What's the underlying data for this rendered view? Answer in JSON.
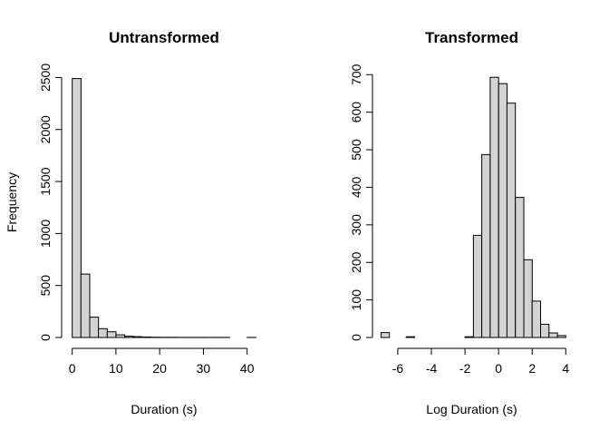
{
  "chart_data": [
    {
      "type": "bar",
      "title": "Untransformed",
      "xlabel": "Duration (s)",
      "ylabel": "Frequency",
      "bin_width": 2,
      "bin_starts": [
        0,
        2,
        4,
        6,
        8,
        10,
        12,
        14,
        16,
        18,
        20,
        22,
        24,
        26,
        28,
        30,
        32,
        34,
        36,
        38,
        40,
        42
      ],
      "values": [
        2490,
        610,
        195,
        85,
        55,
        25,
        12,
        8,
        4,
        3,
        2,
        2,
        1,
        1,
        1,
        1,
        1,
        1,
        0,
        0,
        1,
        0
      ],
      "xlim": [
        -2,
        44
      ],
      "ylim": [
        0,
        2600
      ],
      "xticks": [
        0,
        10,
        20,
        30,
        40
      ],
      "xtick_labels": [
        "0",
        "10",
        "20",
        "30",
        "40"
      ],
      "yticks": [
        0,
        500,
        1000,
        1500,
        2000,
        2500
      ],
      "ytick_labels": [
        "0",
        "500",
        "1000",
        "1500",
        "2000",
        "2500"
      ]
    },
    {
      "type": "bar",
      "title": "Transformed",
      "xlabel": "Log Duration (s)",
      "ylabel": "",
      "bin_width": 0.5,
      "bin_starts": [
        -7,
        -6.5,
        -6,
        -5.5,
        -5,
        -4.5,
        -4,
        -3.5,
        -3,
        -2.5,
        -2,
        -1.5,
        -1,
        -0.5,
        0,
        0.5,
        1,
        1.5,
        2,
        2.5,
        3,
        3.5
      ],
      "values": [
        13,
        0,
        0,
        2,
        0,
        0,
        0,
        0,
        0,
        0,
        2,
        272,
        487,
        693,
        676,
        624,
        373,
        207,
        97,
        35,
        12,
        5
      ],
      "xlim": [
        -7.4,
        4.2
      ],
      "ylim": [
        0,
        720
      ],
      "xticks": [
        -6,
        -4,
        -2,
        0,
        2,
        4
      ],
      "xtick_labels": [
        "-6",
        "-4",
        "-2",
        "0",
        "2",
        "4"
      ],
      "yticks": [
        0,
        100,
        200,
        300,
        400,
        500,
        600,
        700
      ],
      "ytick_labels": [
        "0",
        "100",
        "200",
        "300",
        "400",
        "500",
        "600",
        "700"
      ]
    }
  ]
}
